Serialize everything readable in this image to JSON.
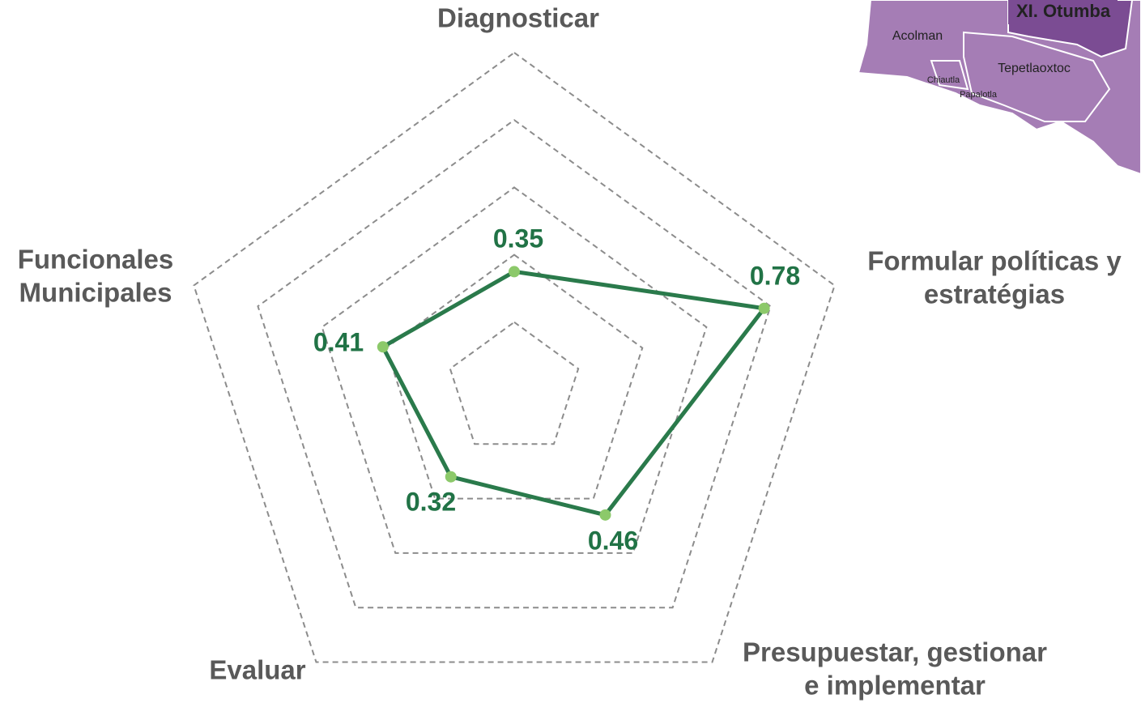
{
  "chart_data": {
    "type": "radar",
    "categories": [
      [
        "Diagnosticar"
      ],
      [
        "Formular políticas y",
        "estratégias"
      ],
      [
        "Presupuestar, gestionar",
        "e implementar"
      ],
      [
        "Evaluar"
      ],
      [
        "Funcionales",
        "Municipales"
      ]
    ],
    "series": [
      {
        "color": "#2a7a4b",
        "values": [
          0.35,
          0.78,
          0.46,
          0.32,
          0.41
        ]
      }
    ],
    "rlim": [
      0,
      1
    ],
    "rticks": [
      0.2,
      0.4,
      0.6,
      0.8,
      1.0
    ],
    "grid": true
  },
  "map": {
    "labels": [
      "XI. Otumba",
      "Acolman",
      "Tepetlaoxtoc",
      "Chiautla",
      "Papalotla"
    ]
  }
}
